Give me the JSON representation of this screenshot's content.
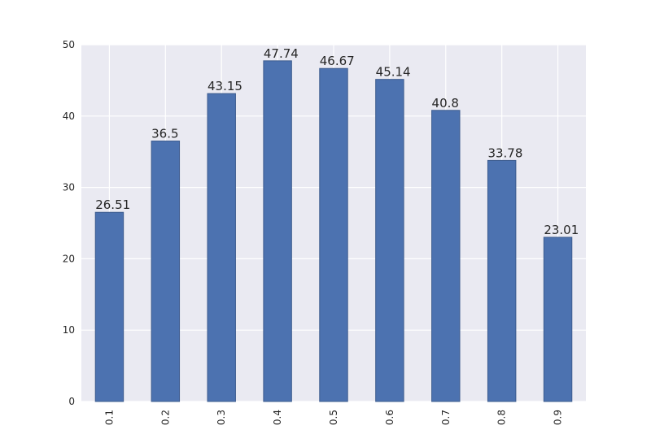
{
  "chart_data": {
    "type": "bar",
    "categories": [
      "0.1",
      "0.2",
      "0.3",
      "0.4",
      "0.5",
      "0.6",
      "0.7",
      "0.8",
      "0.9"
    ],
    "values": [
      26.51,
      36.5,
      43.15,
      47.74,
      46.67,
      45.14,
      40.8,
      33.78,
      23.01
    ],
    "value_labels": [
      "26.51",
      "36.5",
      "43.15",
      "47.74",
      "46.67",
      "45.14",
      "40.8",
      "33.78",
      "23.01"
    ],
    "title": "",
    "xlabel": "",
    "ylabel": "",
    "ylim": [
      0,
      50
    ],
    "yticks": [
      0,
      10,
      20,
      30,
      40,
      50
    ],
    "ytick_labels": [
      "0",
      "10",
      "20",
      "30",
      "40",
      "50"
    ],
    "grid": true,
    "legend": "none",
    "xtick_rotation": "vertical",
    "colors": {
      "bar": "#4c72b0",
      "bar_edge": "#3d5c8e",
      "plot_background": "#eaeaf2",
      "grid": "#ffffff",
      "text": "#262626"
    }
  }
}
